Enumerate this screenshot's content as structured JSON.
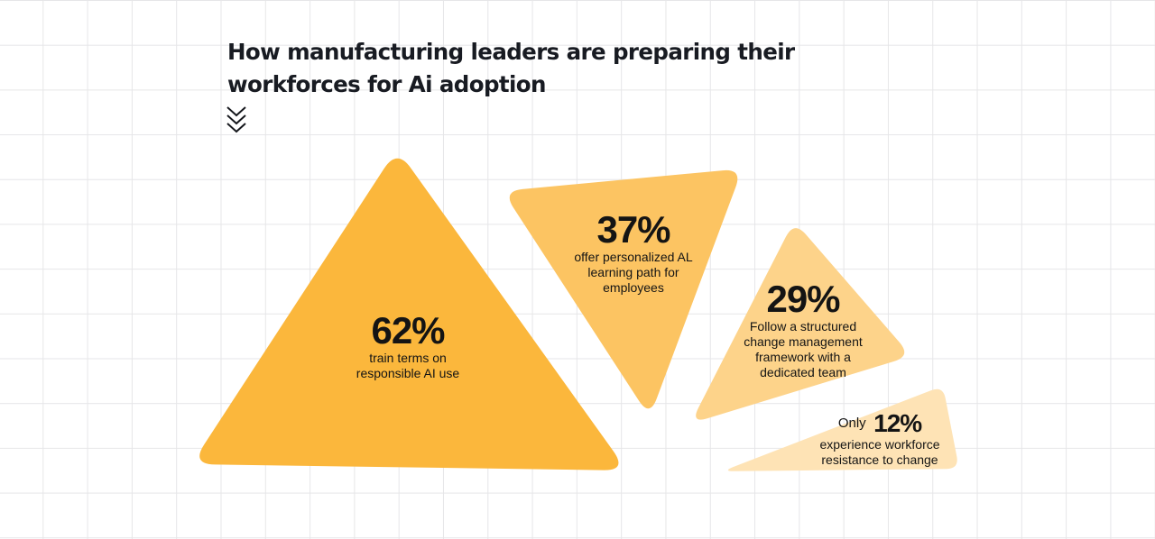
{
  "header": {
    "title_line1": "How manufacturing leaders are preparing their",
    "title_line2": "workforces for Ai adoption",
    "scroll_icon": "triple-chevron-down-icon"
  },
  "chart_data": {
    "type": "proportional-triangles",
    "title": "How manufacturing leaders are preparing their workforces for Ai adoption",
    "unit": "%",
    "items": [
      {
        "value": 62,
        "label": "62%",
        "prefix": "",
        "description": "train terms on responsible AI use",
        "desc_lines": [
          "train terms on",
          "responsible AI use"
        ],
        "color": "#FBB73C"
      },
      {
        "value": 37,
        "label": "37%",
        "prefix": "",
        "description": "offer personalized AL learning path for employees",
        "desc_lines": [
          "offer personalized AL",
          "learning path for",
          "employees"
        ],
        "color": "#FCC462"
      },
      {
        "value": 29,
        "label": "29%",
        "prefix": "",
        "description": "Follow a structured change management framework with a dedicated team",
        "desc_lines": [
          "Follow a structured",
          "change management",
          "framework with a",
          "dedicated team"
        ],
        "color": "#FDD38A"
      },
      {
        "value": 12,
        "label": "12%",
        "prefix": "Only",
        "description": "experience workforce resistance to change",
        "desc_lines": [
          "experience workforce",
          "resistance to change"
        ],
        "color": "#FEE3B5"
      }
    ]
  }
}
